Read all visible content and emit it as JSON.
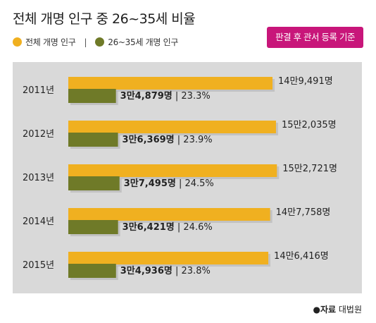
{
  "title": "전체 개명 인구 중 26~35세 비율",
  "legend": {
    "items": [
      {
        "label": "전체 개명 인구",
        "color": "#f0b020"
      },
      {
        "label": "26~35세 개명 인구",
        "color": "#6f7a28"
      }
    ],
    "separator": "|"
  },
  "badge": {
    "text": "판결 후 관서 등록 기준",
    "color": "#c8167a"
  },
  "source": {
    "prefix": "●자료",
    "name": "대법원"
  },
  "chart_data": {
    "type": "bar",
    "orientation": "horizontal",
    "categories": [
      "2011년",
      "2012년",
      "2013년",
      "2014년",
      "2015년"
    ],
    "series": [
      {
        "name": "전체 개명 인구",
        "color": "#f0b020",
        "values": [
          149491,
          152035,
          152721,
          147758,
          146416
        ],
        "labels": [
          "14만9,491명",
          "15만2,035명",
          "15만2,721명",
          "14만7,758명",
          "14만6,416명"
        ]
      },
      {
        "name": "26~35세 개명 인구",
        "color": "#6f7a28",
        "values": [
          34879,
          36369,
          37495,
          36421,
          34936
        ],
        "labels": [
          "3만4,879명",
          "3만6,369명",
          "3만7,495명",
          "3만6,421명",
          "3만4,936명"
        ]
      }
    ],
    "percent_labels": [
      "23.3%",
      "23.9%",
      "24.5%",
      "24.6%",
      "23.8%"
    ],
    "label_separator": "|",
    "grid": false
  }
}
